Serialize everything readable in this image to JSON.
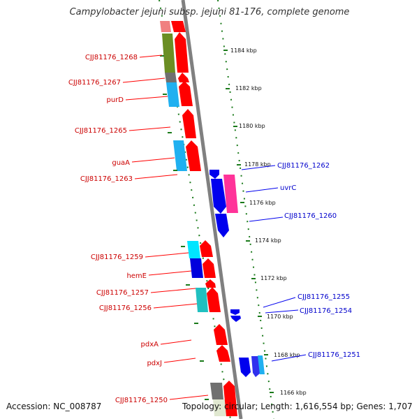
{
  "title": "Campylobacter jejuni subsp. jejuni 81-176, complete genome",
  "footer": {
    "accession": "Accession: NC_008787",
    "topology": "Topology: circular; Length: 1,616,554 bp; Genes: 1,707"
  },
  "colors": {
    "forward": "#ff0000",
    "reverse": "#0000ee",
    "backbone": "#808080",
    "dots": "#1a7a1a"
  },
  "ticks": [
    "1184 kbp",
    "1182 kbp",
    "1180 kbp",
    "1178 kbp",
    "1176 kbp",
    "1174 kbp",
    "1172 kbp",
    "1170 kbp",
    "1168 kbp",
    "1166 kbp"
  ],
  "forward_genes": [
    "CJJ81176_1268",
    "CJJ81176_1267",
    "purD",
    "CJJ81176_1265",
    "guaA",
    "CJJ81176_1263",
    "CJJ81176_1259",
    "hemE",
    "CJJ81176_1257",
    "CJJ81176_1256",
    "pdxA",
    "pdxJ",
    "CJJ81176_1250"
  ],
  "reverse_genes": [
    "CJJ81176_1262",
    "uvrC",
    "CJJ81176_1260",
    "CJJ81176_1255",
    "CJJ81176_1254",
    "CJJ81176_1251"
  ]
}
